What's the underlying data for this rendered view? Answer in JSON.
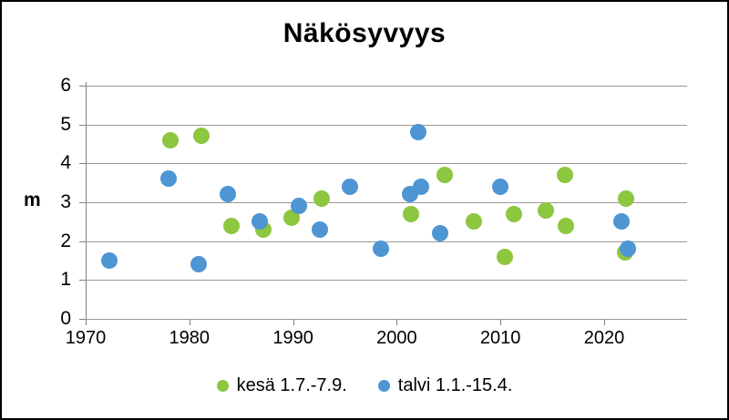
{
  "title": "Näkösyvyys",
  "y_axis_label": "m",
  "legend": [
    {
      "label": "kesä 1.7.-7.9.",
      "color": "#8dc63f"
    },
    {
      "label": "talvi 1.1.-15.4.",
      "color": "#4e95d3"
    }
  ],
  "colors": {
    "summer_green": "#8dc63f",
    "winter_blue": "#4e95d3",
    "gridline_gray": "#9a9a9a"
  },
  "chart_data": {
    "type": "scatter",
    "title": "Näkösyvyys",
    "xlabel": "",
    "ylabel": "m",
    "xlim": [
      1970,
      2028
    ],
    "ylim": [
      0,
      6
    ],
    "x_ticks": [
      1970,
      1980,
      1990,
      2000,
      2010,
      2020
    ],
    "y_ticks": [
      0,
      1,
      2,
      3,
      4,
      5,
      6
    ],
    "grid": "horizontal",
    "legend_position": "bottom",
    "series": [
      {
        "name": "kesä 1.7.-7.9.",
        "color": "#8dc63f",
        "points": [
          [
            1978.2,
            4.6
          ],
          [
            1981.2,
            4.7
          ],
          [
            1984.1,
            2.4
          ],
          [
            1987.1,
            2.3
          ],
          [
            1989.9,
            2.6
          ],
          [
            1992.8,
            3.1
          ],
          [
            2001.4,
            2.7
          ],
          [
            2004.6,
            3.7
          ],
          [
            2007.4,
            2.5
          ],
          [
            2010.4,
            1.6
          ],
          [
            2011.3,
            2.7
          ],
          [
            2014.4,
            2.8
          ],
          [
            2016.2,
            3.7
          ],
          [
            2016.3,
            2.4
          ],
          [
            2022.0,
            1.7
          ],
          [
            2022.1,
            3.1
          ]
        ]
      },
      {
        "name": "talvi 1.1.-15.4.",
        "color": "#4e95d3",
        "points": [
          [
            1972.3,
            1.5
          ],
          [
            1978.0,
            3.6
          ],
          [
            1980.9,
            1.4
          ],
          [
            1983.7,
            3.2
          ],
          [
            1986.8,
            2.5
          ],
          [
            1990.6,
            2.9
          ],
          [
            1992.6,
            2.3
          ],
          [
            1995.5,
            3.4
          ],
          [
            1998.5,
            1.8
          ],
          [
            2001.3,
            3.2
          ],
          [
            2002.1,
            4.8
          ],
          [
            2002.3,
            3.4
          ],
          [
            2004.2,
            2.2
          ],
          [
            2010.0,
            3.4
          ],
          [
            2021.7,
            2.5
          ],
          [
            2022.3,
            1.8
          ]
        ]
      }
    ]
  }
}
